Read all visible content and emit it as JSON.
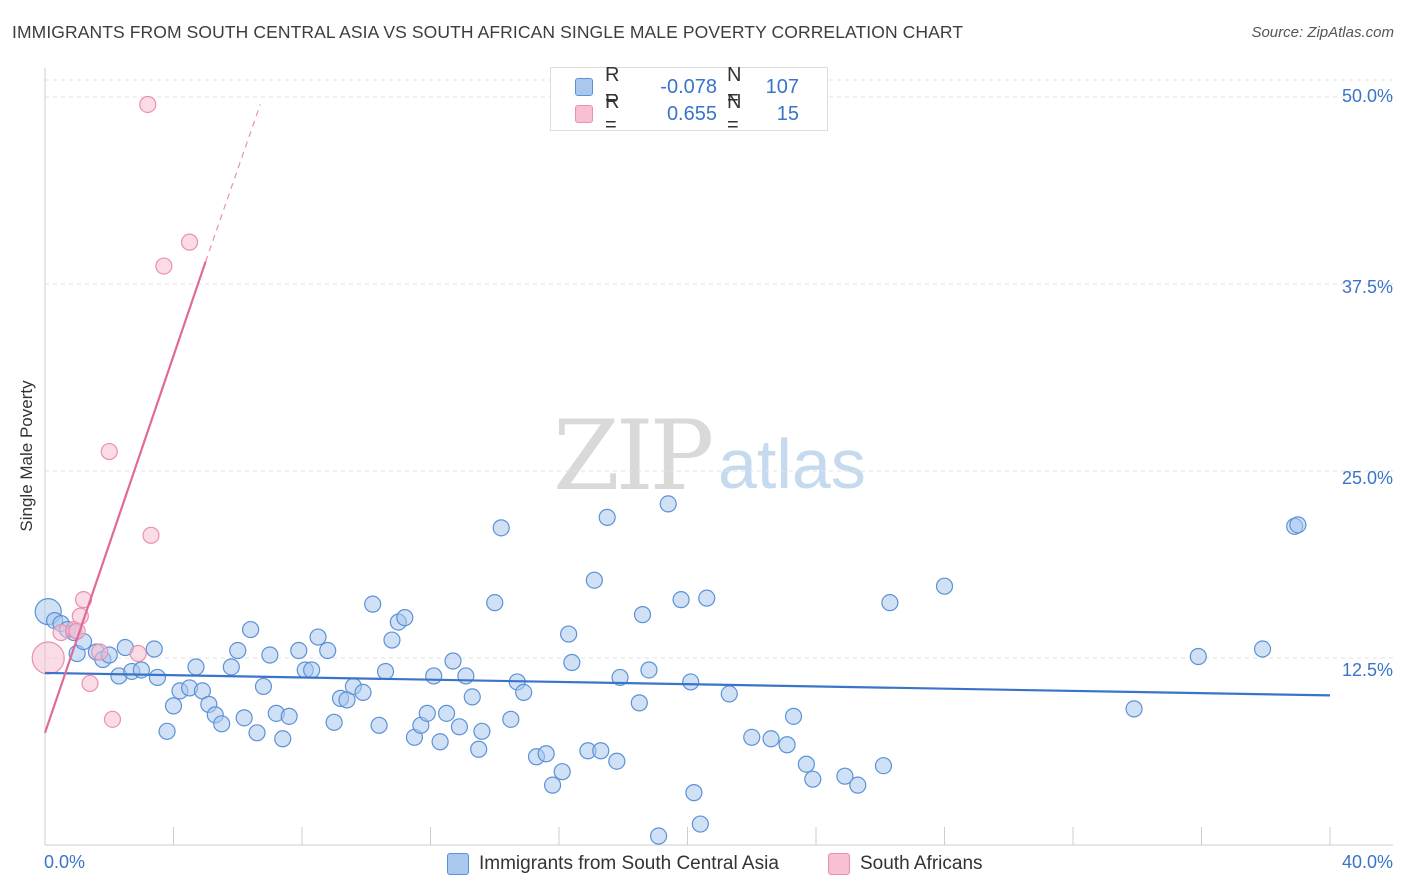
{
  "title": "IMMIGRANTS FROM SOUTH CENTRAL ASIA VS SOUTH AFRICAN SINGLE MALE POVERTY CORRELATION CHART",
  "source": "Source: ZipAtlas.com",
  "watermark": {
    "zip": "ZIP",
    "atlas": "atlas"
  },
  "colors": {
    "blue": "#3a74c9",
    "blue_fill": "#a9c8ee",
    "blue_stroke": "#5b92d6",
    "pink": "#e0699b",
    "pink_fill": "#f6bfd2",
    "pink_stroke": "#eb8fb2",
    "grid": "#e2e2e2"
  },
  "legend_top": [
    {
      "series": "blue",
      "r_label": "R =",
      "r_value": "-0.078",
      "n_label": "N =",
      "n_value": "107"
    },
    {
      "series": "pink",
      "r_label": "R =",
      "r_value": "0.655",
      "n_label": "N =",
      "n_value": "15"
    }
  ],
  "legend_bottom": [
    {
      "series": "blue",
      "label": "Immigrants from South Central Asia"
    },
    {
      "series": "pink",
      "label": "South Africans"
    }
  ],
  "chart_data": {
    "type": "scatter",
    "title": "IMMIGRANTS FROM SOUTH CENTRAL ASIA VS SOUTH AFRICAN SINGLE MALE POVERTY CORRELATION CHART",
    "xlabel": "",
    "ylabel": "Single Male Poverty",
    "xlim": [
      0,
      40
    ],
    "ylim": [
      0,
      50
    ],
    "x_tick_labels": [
      "0.0%",
      "40.0%"
    ],
    "y_tick_labels": [
      "12.5%",
      "25.0%",
      "37.5%",
      "50.0%"
    ],
    "y_ticks": [
      12.5,
      25.0,
      37.5,
      50.0
    ],
    "x_minor_ticks": [
      0,
      4,
      8,
      12,
      16,
      20,
      24,
      28,
      32,
      36,
      40
    ],
    "series": [
      {
        "name": "Immigrants from South Central Asia",
        "color": "blue",
        "trend": {
          "x": [
            0,
            40
          ],
          "y": [
            11.5,
            10.0
          ]
        },
        "points": [
          [
            0.1,
            15.6
          ],
          [
            0.3,
            15.0
          ],
          [
            0.5,
            14.8
          ],
          [
            0.7,
            14.4
          ],
          [
            0.9,
            14.2
          ],
          [
            1.0,
            12.8
          ],
          [
            1.2,
            13.6
          ],
          [
            1.6,
            12.9
          ],
          [
            1.8,
            12.4
          ],
          [
            2.0,
            12.7
          ],
          [
            2.3,
            11.3
          ],
          [
            2.5,
            13.2
          ],
          [
            2.7,
            11.6
          ],
          [
            3.0,
            11.7
          ],
          [
            3.4,
            13.1
          ],
          [
            3.5,
            11.2
          ],
          [
            3.8,
            7.6
          ],
          [
            4.0,
            9.3
          ],
          [
            4.2,
            10.3
          ],
          [
            4.5,
            10.5
          ],
          [
            4.7,
            11.9
          ],
          [
            4.9,
            10.3
          ],
          [
            5.1,
            9.4
          ],
          [
            5.3,
            8.7
          ],
          [
            5.5,
            8.1
          ],
          [
            5.8,
            11.9
          ],
          [
            6.0,
            13.0
          ],
          [
            6.2,
            8.5
          ],
          [
            6.4,
            14.4
          ],
          [
            6.6,
            7.5
          ],
          [
            6.8,
            10.6
          ],
          [
            7.0,
            12.7
          ],
          [
            7.2,
            8.8
          ],
          [
            7.4,
            7.1
          ],
          [
            7.6,
            8.6
          ],
          [
            7.9,
            13.0
          ],
          [
            8.1,
            11.7
          ],
          [
            8.3,
            11.7
          ],
          [
            8.5,
            13.9
          ],
          [
            8.8,
            13.0
          ],
          [
            9.0,
            8.2
          ],
          [
            9.2,
            9.8
          ],
          [
            9.4,
            9.7
          ],
          [
            9.6,
            10.6
          ],
          [
            9.9,
            10.2
          ],
          [
            10.2,
            16.1
          ],
          [
            10.4,
            8.0
          ],
          [
            10.6,
            11.6
          ],
          [
            10.8,
            13.7
          ],
          [
            11.0,
            14.9
          ],
          [
            11.2,
            15.2
          ],
          [
            11.5,
            7.2
          ],
          [
            11.7,
            8.0
          ],
          [
            11.9,
            8.8
          ],
          [
            12.1,
            11.3
          ],
          [
            12.3,
            6.9
          ],
          [
            12.5,
            8.8
          ],
          [
            12.7,
            12.3
          ],
          [
            12.9,
            7.9
          ],
          [
            13.1,
            11.3
          ],
          [
            13.3,
            9.9
          ],
          [
            13.5,
            6.4
          ],
          [
            13.6,
            7.6
          ],
          [
            14.0,
            16.2
          ],
          [
            14.2,
            21.2
          ],
          [
            14.5,
            8.4
          ],
          [
            14.7,
            10.9
          ],
          [
            14.9,
            10.2
          ],
          [
            15.3,
            5.9
          ],
          [
            15.6,
            6.1
          ],
          [
            15.8,
            4.0
          ],
          [
            16.1,
            4.9
          ],
          [
            16.3,
            14.1
          ],
          [
            16.4,
            12.2
          ],
          [
            16.9,
            6.3
          ],
          [
            17.1,
            17.7
          ],
          [
            17.3,
            6.3
          ],
          [
            17.5,
            21.9
          ],
          [
            17.8,
            5.6
          ],
          [
            17.9,
            11.2
          ],
          [
            18.6,
            15.4
          ],
          [
            18.8,
            11.7
          ],
          [
            18.5,
            9.5
          ],
          [
            19.1,
            0.6
          ],
          [
            19.4,
            22.8
          ],
          [
            19.8,
            16.4
          ],
          [
            20.1,
            10.9
          ],
          [
            20.2,
            3.5
          ],
          [
            20.4,
            1.4
          ],
          [
            20.6,
            16.5
          ],
          [
            21.3,
            10.1
          ],
          [
            22.0,
            7.2
          ],
          [
            22.6,
            7.1
          ],
          [
            23.1,
            6.7
          ],
          [
            23.3,
            8.6
          ],
          [
            23.7,
            5.4
          ],
          [
            23.9,
            4.4
          ],
          [
            24.9,
            4.6
          ],
          [
            25.3,
            4.0
          ],
          [
            26.1,
            5.3
          ],
          [
            26.3,
            16.2
          ],
          [
            28.0,
            17.3
          ],
          [
            33.9,
            9.1
          ],
          [
            35.9,
            12.6
          ],
          [
            37.9,
            13.1
          ],
          [
            38.9,
            21.3
          ],
          [
            39.0,
            21.4
          ]
        ]
      },
      {
        "name": "South Africans",
        "color": "pink",
        "trend": {
          "x": [
            0,
            5.0
          ],
          "y": [
            7.5,
            39.0
          ],
          "dashed_to": {
            "x": 6.7,
            "y": 49.5
          }
        },
        "points": [
          [
            0.1,
            12.5
          ],
          [
            0.5,
            14.2
          ],
          [
            0.9,
            14.4
          ],
          [
            1.0,
            14.3
          ],
          [
            1.1,
            15.3
          ],
          [
            1.2,
            16.4
          ],
          [
            1.4,
            10.8
          ],
          [
            1.7,
            12.9
          ],
          [
            2.1,
            8.4
          ],
          [
            2.0,
            26.3
          ],
          [
            2.9,
            12.8
          ],
          [
            3.3,
            20.7
          ],
          [
            3.2,
            49.5
          ],
          [
            3.7,
            38.7
          ],
          [
            4.5,
            40.3
          ]
        ]
      }
    ]
  }
}
